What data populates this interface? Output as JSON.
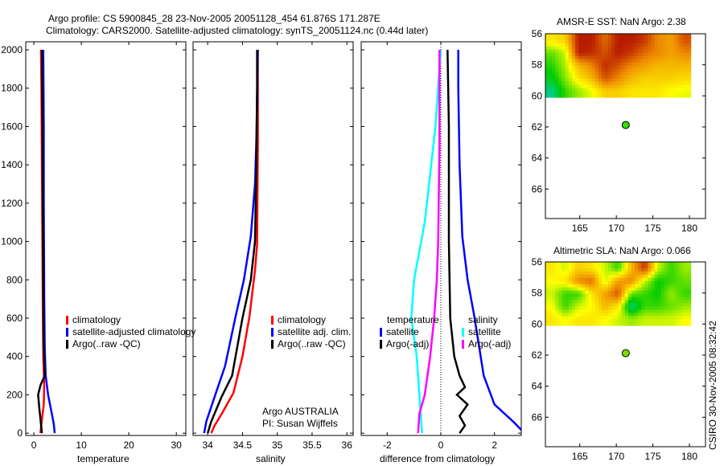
{
  "header": {
    "title_line1": "Argo profile: CS 5900845_28 23-Nov-2005 20051128_454 61.876S 171.287E",
    "title_line2": "Climatology: CARS2000. Satellite-adjusted climatology: synTS_20051124.nc (0.44d later)"
  },
  "footer": {
    "stamp": "CSIRO 30-Nov-2005 08:32:42",
    "credit_line1": "Argo AUSTRALIA",
    "credit_line2": "PI: Susan Wijffels"
  },
  "colors": {
    "climatology": "#ff0000",
    "satellite": "#0000ff",
    "argo": "#000000",
    "sal_satellite": "#00ffff",
    "sal_argo": "#ff00ff"
  },
  "chart_data": [
    {
      "type": "line",
      "xlabel": "temperature",
      "xlim": [
        -1.7,
        32
      ],
      "ylim": [
        2042,
        -12
      ],
      "xticks": [
        0,
        10,
        20,
        30
      ],
      "yticks": [
        0,
        200,
        400,
        600,
        800,
        1000,
        1200,
        1400,
        1600,
        1800,
        2000
      ],
      "legend": [
        "climatology",
        "satellite-adjusted climatology",
        "Argo(..raw -QC)"
      ],
      "series": [
        {
          "name": "climatology",
          "color": "#ff0000",
          "x": [
            1.4,
            1.6,
            2.1,
            2.2,
            2.0,
            1.9,
            1.8,
            1.7,
            1.6,
            1.5
          ],
          "y": [
            0,
            50,
            150,
            250,
            400,
            600,
            1000,
            1400,
            1800,
            2000
          ]
        },
        {
          "name": "satellite-adjusted climatology",
          "color": "#0000ff",
          "x": [
            4.4,
            4.2,
            3.8,
            3.0,
            2.5,
            2.3,
            2.2,
            2.1,
            2.1,
            2.0
          ],
          "y": [
            0,
            50,
            100,
            200,
            300,
            450,
            700,
            1200,
            1600,
            2000
          ]
        },
        {
          "name": "Argo(..raw -QC)",
          "color": "#000000",
          "x": [
            1.7,
            1.5,
            1.2,
            0.9,
            1.4,
            2.3,
            2.1,
            2.0,
            1.9,
            1.8,
            1.7
          ],
          "y": [
            0,
            50,
            120,
            200,
            250,
            300,
            450,
            700,
            1200,
            1700,
            2000
          ]
        }
      ]
    },
    {
      "type": "line",
      "xlabel": "salinity",
      "xlim": [
        33.79,
        36.09
      ],
      "ylim": [
        2042,
        -12
      ],
      "xticks": [
        34,
        34.5,
        35,
        35.5,
        36
      ],
      "yticks": [
        0,
        200,
        400,
        600,
        800,
        1000,
        1200,
        1400,
        1600,
        1800,
        2000
      ],
      "legend": [
        "climatology",
        "satellite adj. clim.",
        "Argo(..raw -QC)"
      ],
      "series": [
        {
          "name": "climatology",
          "color": "#ff0000",
          "x": [
            34.05,
            34.1,
            34.2,
            34.37,
            34.5,
            34.6,
            34.68,
            34.71,
            34.72,
            34.72
          ],
          "y": [
            0,
            40,
            100,
            210,
            400,
            608,
            850,
            985,
            1500,
            2000
          ]
        },
        {
          "name": "satellite adj. clim.",
          "color": "#0000ff",
          "x": [
            33.95,
            33.98,
            34.1,
            34.25,
            34.4,
            34.52,
            34.62,
            34.68,
            34.7,
            34.72
          ],
          "y": [
            0,
            60,
            190,
            350,
            608,
            800,
            1027,
            1300,
            1530,
            2000
          ]
        },
        {
          "name": "Argo(..raw -QC)",
          "color": "#000000",
          "x": [
            34.0,
            34.05,
            34.2,
            34.35,
            34.5,
            34.62,
            34.68,
            34.7,
            34.71,
            34.71
          ],
          "y": [
            0,
            60,
            190,
            300,
            600,
            800,
            1000,
            1400,
            1800,
            2000
          ]
        }
      ]
    },
    {
      "type": "line",
      "xlabel": "difference from climatology",
      "xlim": [
        -2.97,
        3.0
      ],
      "ylim": [
        2042,
        -12
      ],
      "xticks": [
        -2,
        0,
        2
      ],
      "yticks": [
        0,
        200,
        400,
        600,
        800,
        1000,
        1200,
        1400,
        1600,
        1800,
        2000
      ],
      "legend_left": {
        "title": "temperature",
        "items": [
          "satellite",
          "Argo(-adj)"
        ]
      },
      "legend_right": {
        "title": "salinity",
        "items": [
          "satellite",
          "Argo(-adj)"
        ]
      },
      "series": [
        {
          "name": "temperature satellite",
          "color": "#0000ff",
          "x": [
            3.2,
            2.7,
            2.0,
            1.6,
            1.25,
            1.0,
            0.8,
            0.7,
            0.65,
            0.65
          ],
          "y": [
            -12,
            60,
            150,
            300,
            608,
            800,
            1027,
            1400,
            1800,
            2000
          ]
        },
        {
          "name": "temperature Argo(-adj)",
          "color": "#000000",
          "x": [
            0.7,
            0.9,
            0.7,
            1.0,
            0.6,
            0.9,
            0.7,
            0.5,
            0.35,
            0.3,
            0.3,
            0.25
          ],
          "y": [
            0,
            40,
            90,
            150,
            200,
            240,
            300,
            400,
            600,
            1000,
            1600,
            2000
          ]
        },
        {
          "name": "salinity satellite",
          "color": "#00ffff",
          "x": [
            -0.7,
            -0.75,
            -0.8,
            -0.9,
            -1.1,
            -1.0,
            -0.6,
            -0.4,
            -0.2,
            0.0
          ],
          "y": [
            0,
            100,
            200,
            400,
            600,
            800,
            1100,
            1350,
            1600,
            2000
          ]
        },
        {
          "name": "salinity Argo(-adj)",
          "color": "#ff00ff",
          "x": [
            -0.85,
            -0.8,
            -0.6,
            -0.4,
            -0.25,
            -0.15,
            -0.1,
            -0.05,
            -0.05
          ],
          "y": [
            0,
            100,
            200,
            400,
            600,
            800,
            1000,
            1500,
            2000
          ]
        }
      ]
    },
    {
      "type": "heatmap",
      "title": "AMSR-E SST: NaN Argo: 2.38",
      "xlim": [
        160.3,
        182.2
      ],
      "ylim": [
        -56,
        -67.9
      ],
      "xticks": [
        165,
        170,
        175,
        180
      ],
      "yticks": [
        -56,
        -58,
        -60,
        -62,
        -64,
        -66
      ],
      "grid_lon": [
        160.3,
        180.2
      ],
      "grid_lat": [
        -56,
        -60.1
      ],
      "values": [
        [
          0.55,
          0.6,
          0.95,
          0.95,
          0.8,
          0.95,
          0.95,
          0.9,
          0.75,
          0.7,
          0.85
        ],
        [
          0.35,
          0.45,
          0.95,
          0.92,
          0.85,
          0.95,
          0.9,
          0.8,
          0.75,
          0.7,
          0.75
        ],
        [
          0.28,
          0.42,
          0.65,
          0.75,
          0.92,
          0.85,
          0.75,
          0.7,
          0.65,
          0.65,
          0.65
        ],
        [
          0.22,
          0.38,
          0.55,
          0.65,
          0.85,
          0.75,
          0.65,
          0.6,
          0.6,
          0.6,
          0.58
        ],
        [
          0.1,
          0.3,
          0.4,
          0.48,
          0.6,
          0.6,
          0.55,
          0.55,
          0.55,
          0.5,
          0.48
        ]
      ],
      "argo_point": {
        "lon": 171.287,
        "lat": -61.876,
        "color": "#33dd00"
      }
    },
    {
      "type": "heatmap",
      "title": "Altimetric SLA: NaN Argo: 0.066",
      "xlim": [
        160.3,
        182.2
      ],
      "ylim": [
        -56,
        -67.9
      ],
      "xticks": [
        165,
        170,
        175,
        180
      ],
      "yticks": [
        -56,
        -58,
        -60,
        -62,
        -64,
        -66
      ],
      "grid_lon": [
        160.3,
        180.2
      ],
      "grid_lat": [
        -56,
        -60.1
      ],
      "values": [
        [
          0.55,
          0.45,
          0.6,
          0.55,
          0.45,
          0.3,
          0.65,
          0.9,
          0.45,
          0.3,
          0.4
        ],
        [
          0.5,
          0.55,
          0.75,
          0.8,
          0.45,
          0.7,
          0.75,
          0.45,
          0.25,
          0.3,
          0.35
        ],
        [
          0.45,
          0.3,
          0.3,
          0.55,
          0.7,
          0.85,
          0.35,
          0.3,
          0.25,
          0.4,
          0.3
        ],
        [
          0.5,
          0.3,
          0.45,
          0.5,
          0.65,
          0.55,
          0.1,
          0.3,
          0.3,
          0.35,
          0.4
        ],
        [
          0.55,
          0.5,
          0.55,
          0.55,
          0.5,
          0.45,
          0.4,
          0.45,
          0.45,
          0.45,
          0.5
        ]
      ],
      "argo_point": {
        "lon": 171.287,
        "lat": -61.876,
        "color": "#77dd00"
      }
    }
  ]
}
